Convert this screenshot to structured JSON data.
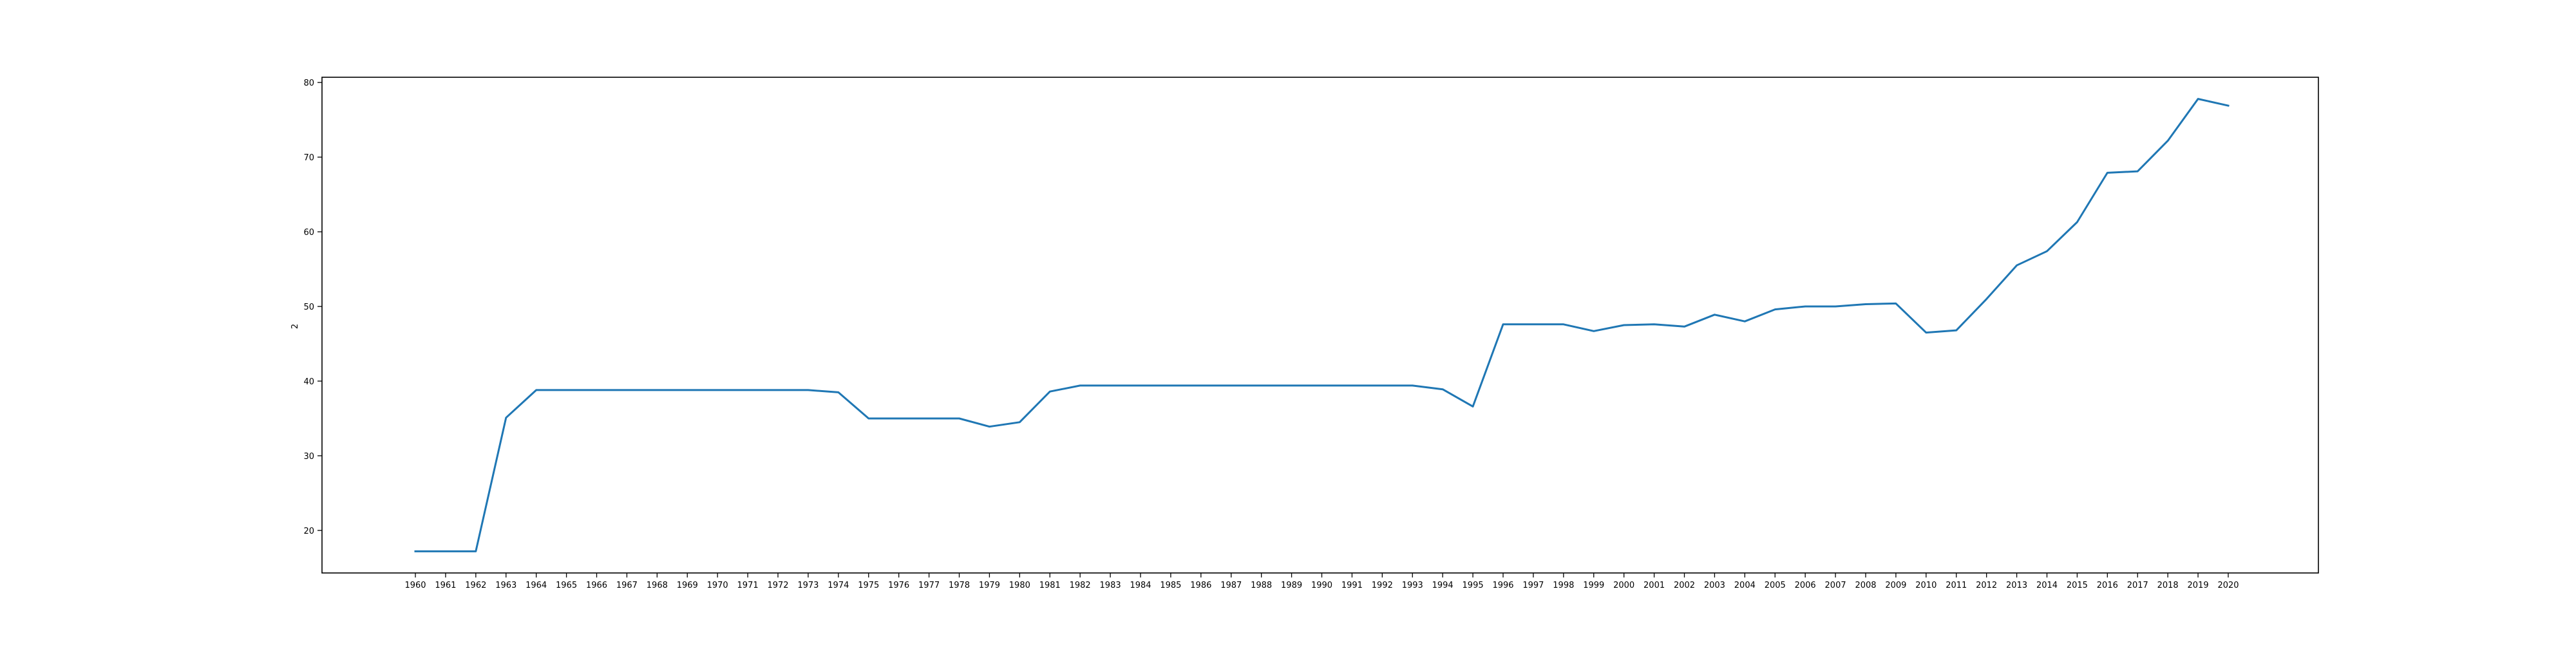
{
  "chart_data": {
    "type": "line",
    "title": "",
    "xlabel": "",
    "ylabel": "2",
    "ylim": [
      14.3,
      80.7
    ],
    "yticks": [
      20,
      30,
      40,
      50,
      60,
      70,
      80
    ],
    "grid": false,
    "legend": "none",
    "colors": {
      "line": "#1f77b4",
      "axes": "#000000",
      "background": "#ffffff"
    },
    "x": [
      "1960",
      "1961",
      "1962",
      "1963",
      "1964",
      "1965",
      "1966",
      "1967",
      "1968",
      "1969",
      "1970",
      "1971",
      "1972",
      "1973",
      "1974",
      "1975",
      "1976",
      "1977",
      "1978",
      "1979",
      "1980",
      "1981",
      "1982",
      "1983",
      "1984",
      "1985",
      "1986",
      "1987",
      "1988",
      "1989",
      "1990",
      "1991",
      "1992",
      "1993",
      "1994",
      "1995",
      "1996",
      "1997",
      "1998",
      "1999",
      "2000",
      "2001",
      "2002",
      "2003",
      "2004",
      "2005",
      "2006",
      "2007",
      "2008",
      "2009",
      "2010",
      "2011",
      "2012",
      "2013",
      "2014",
      "2015",
      "2016",
      "2017",
      "2018",
      "2019",
      "2020"
    ],
    "series": [
      {
        "values": [
          17.2,
          17.2,
          17.2,
          35.1,
          38.8,
          38.8,
          38.8,
          38.8,
          38.8,
          38.8,
          38.8,
          38.8,
          38.8,
          38.8,
          38.5,
          35.0,
          35.0,
          35.0,
          35.0,
          33.9,
          34.5,
          38.6,
          39.4,
          39.4,
          39.4,
          39.4,
          39.4,
          39.4,
          39.4,
          39.4,
          39.4,
          39.4,
          39.4,
          39.4,
          38.9,
          36.6,
          47.6,
          47.6,
          47.6,
          46.7,
          47.5,
          47.6,
          47.3,
          48.9,
          48.0,
          49.6,
          50.0,
          50.0,
          50.3,
          50.4,
          46.5,
          46.8,
          51.0,
          55.5,
          57.4,
          61.3,
          67.9,
          68.1,
          72.2,
          77.8,
          76.9
        ]
      }
    ]
  }
}
